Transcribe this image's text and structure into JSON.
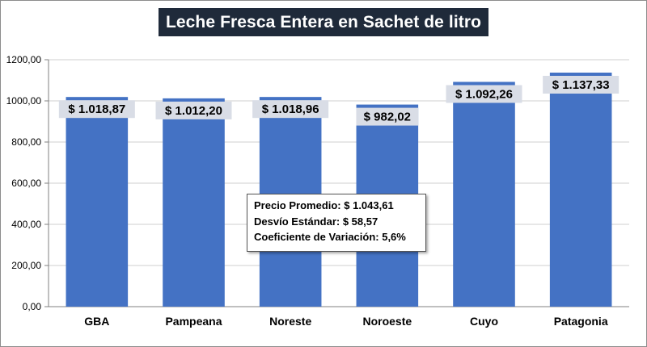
{
  "chart_data": {
    "type": "bar",
    "title": "Leche Fresca Entera en Sachet de litro",
    "categories": [
      "GBA",
      "Pampeana",
      "Noreste",
      "Noroeste",
      "Cuyo",
      "Patagonia"
    ],
    "values": [
      1018.87,
      1012.2,
      1018.96,
      982.02,
      1092.26,
      1137.33
    ],
    "data_labels": [
      "$ 1.018,87",
      "$ 1.012,20",
      "$ 1.018,96",
      "$ 982,02",
      "$ 1.092,26",
      "$ 1.137,33"
    ],
    "ylim": [
      0,
      1200
    ],
    "yticks": [
      0,
      200,
      400,
      600,
      800,
      1000,
      1200
    ],
    "ytick_labels": [
      "0,00",
      "200,00",
      "400,00",
      "600,00",
      "800,00",
      "1000,00",
      "1200,00"
    ],
    "xlabel": "",
    "ylabel": "",
    "grid": true,
    "bar_color": "#4472c4",
    "annotation": [
      "Precio Promedio: $ 1.043,61",
      "Desvío Estándar: $ 58,57",
      "Coeficiente de Variación: 5,6%"
    ]
  }
}
